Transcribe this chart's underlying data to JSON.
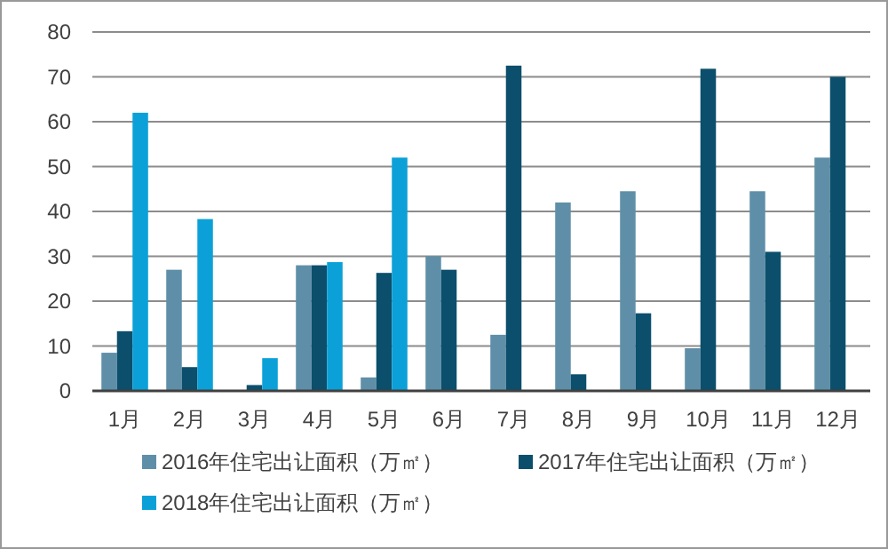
{
  "chart_data": {
    "type": "bar",
    "categories": [
      "1月",
      "2月",
      "3月",
      "4月",
      "5月",
      "6月",
      "7月",
      "8月",
      "9月",
      "10月",
      "11月",
      "12月"
    ],
    "series": [
      {
        "name": "2016年住宅出让面积（万㎡）",
        "color": "#5f8fa8",
        "values": [
          8.5,
          27,
          0,
          28,
          3,
          30,
          12.5,
          42,
          44.5,
          9.5,
          44.5,
          52
        ]
      },
      {
        "name": "2017年住宅出让面积（万㎡）",
        "color": "#0b4f6c",
        "values": [
          13.3,
          5.3,
          1.3,
          28,
          26.3,
          27,
          72.5,
          3.7,
          17.3,
          71.8,
          31,
          70
        ]
      },
      {
        "name": "2018年住宅出让面积（万㎡）",
        "color": "#0ba1d8",
        "values": [
          62,
          38.3,
          7.3,
          28.7,
          52,
          null,
          null,
          null,
          null,
          null,
          null,
          null
        ]
      }
    ],
    "ylim": [
      0,
      80
    ],
    "yticks": [
      0,
      10,
      20,
      30,
      40,
      50,
      60,
      70,
      80
    ],
    "grid": "y",
    "legend": "bottom"
  }
}
